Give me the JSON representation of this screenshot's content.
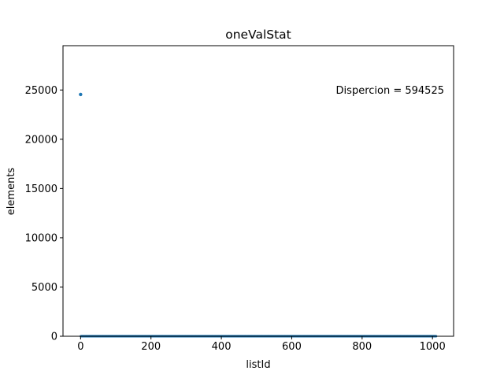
{
  "chart_data": {
    "type": "scatter",
    "title": "oneValStat",
    "xlabel": "listId",
    "ylabel": "elements",
    "xlim": [
      -50,
      1060
    ],
    "ylim": [
      0,
      29500
    ],
    "xticks": [
      0,
      200,
      400,
      600,
      800,
      1000
    ],
    "yticks": [
      0,
      5000,
      10000,
      15000,
      20000,
      25000
    ],
    "annotation": "Dispercion = 594525",
    "annotation_position": "top-right",
    "grid": false,
    "legend": false,
    "marker_color": "#1f77b4",
    "series": [
      {
        "points": [
          [
            0,
            24550
          ]
        ],
        "dense_band": {
          "x_start": 1,
          "x_end": 1010,
          "step": 1,
          "y": 5
        }
      }
    ]
  }
}
